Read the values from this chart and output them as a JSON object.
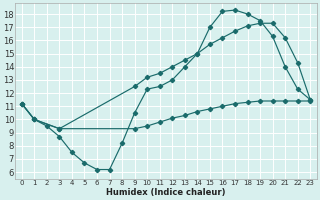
{
  "xlabel": "Humidex (Indice chaleur)",
  "bg_color": "#d8f0ee",
  "line_color": "#1a6b6b",
  "grid_color": "#ffffff",
  "xlim": [
    -0.5,
    23.5
  ],
  "ylim": [
    5.5,
    18.8
  ],
  "xticks": [
    0,
    1,
    2,
    3,
    4,
    5,
    6,
    7,
    8,
    9,
    10,
    11,
    12,
    13,
    14,
    15,
    16,
    17,
    18,
    19,
    20,
    21,
    22,
    23
  ],
  "yticks": [
    6,
    7,
    8,
    9,
    10,
    11,
    12,
    13,
    14,
    15,
    16,
    17,
    18
  ],
  "curve1_x": [
    0,
    1,
    2,
    3,
    4,
    5,
    6,
    7,
    8,
    9,
    10,
    11,
    12,
    13,
    14,
    15,
    16,
    17,
    18,
    19,
    20,
    21,
    22,
    23
  ],
  "curve1_y": [
    11.2,
    10.0,
    9.5,
    8.7,
    7.5,
    6.7,
    6.2,
    6.2,
    8.2,
    10.5,
    12.3,
    12.5,
    13.0,
    14.0,
    15.0,
    17.0,
    18.2,
    18.3,
    18.0,
    17.5,
    16.3,
    14.0,
    12.3,
    11.5
  ],
  "curve2_x": [
    0,
    1,
    3,
    9,
    10,
    11,
    12,
    13,
    14,
    15,
    16,
    17,
    18,
    19,
    20,
    21,
    22,
    23
  ],
  "curve2_y": [
    11.2,
    10.0,
    9.3,
    9.3,
    9.5,
    9.8,
    10.1,
    10.3,
    10.6,
    10.8,
    11.0,
    11.2,
    11.3,
    11.4,
    11.4,
    11.4,
    11.4,
    11.4
  ],
  "curve3_x": [
    0,
    1,
    3,
    9,
    10,
    11,
    12,
    13,
    14,
    15,
    16,
    17,
    18,
    19,
    20,
    21,
    22,
    23
  ],
  "curve3_y": [
    11.2,
    10.0,
    9.3,
    12.5,
    13.2,
    13.5,
    14.0,
    14.5,
    15.0,
    15.7,
    16.2,
    16.7,
    17.1,
    17.3,
    17.3,
    16.2,
    14.3,
    11.5
  ],
  "xlabel_fontsize": 6,
  "tick_fontsize_x": 5,
  "tick_fontsize_y": 6
}
